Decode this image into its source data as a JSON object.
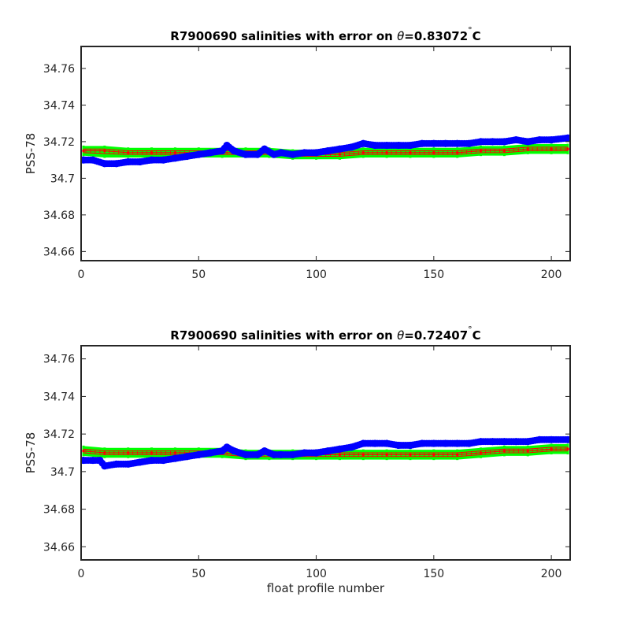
{
  "chart_data": [
    {
      "type": "scatter",
      "title": "R7900690 salinities with error on θ=0.83072°C",
      "title_parts": {
        "prefix": "R7900690 salinities with error on ",
        "symbol": "θ",
        "value": "=0.83072",
        "degree": "°",
        "unit": "C"
      },
      "xlabel": "",
      "ylabel": "PSS-78",
      "xlim": [
        0,
        208
      ],
      "ylim": [
        34.655,
        34.772
      ],
      "xticks": [
        0,
        50,
        100,
        150,
        200
      ],
      "xtick_labels": [
        "0",
        "50",
        "100",
        "150",
        "200"
      ],
      "yticks": [
        34.66,
        34.68,
        34.7,
        34.72,
        34.74,
        34.76
      ],
      "ytick_labels": [
        "34.66",
        "34.68",
        "34.7",
        "34.72",
        "34.74",
        "34.76"
      ],
      "grid": false,
      "colors": {
        "float": "#0000ff",
        "mapped": "#ff0000",
        "error_band": "#00ff00",
        "axes": "#262626"
      },
      "series": [
        {
          "role": "float",
          "points": [
            [
              1,
              34.71
            ],
            [
              5,
              34.71
            ],
            [
              10,
              34.708
            ],
            [
              15,
              34.708
            ],
            [
              20,
              34.709
            ],
            [
              25,
              34.709
            ],
            [
              30,
              34.71
            ],
            [
              35,
              34.71
            ],
            [
              40,
              34.711
            ],
            [
              45,
              34.712
            ],
            [
              50,
              34.713
            ],
            [
              55,
              34.714
            ],
            [
              60,
              34.715
            ],
            [
              62,
              34.718
            ],
            [
              65,
              34.715
            ],
            [
              70,
              34.713
            ],
            [
              75,
              34.713
            ],
            [
              78,
              34.716
            ],
            [
              82,
              34.713
            ],
            [
              85,
              34.714
            ],
            [
              90,
              34.713
            ],
            [
              95,
              34.714
            ],
            [
              100,
              34.714
            ],
            [
              105,
              34.715
            ],
            [
              110,
              34.716
            ],
            [
              115,
              34.717
            ],
            [
              120,
              34.719
            ],
            [
              125,
              34.718
            ],
            [
              130,
              34.718
            ],
            [
              135,
              34.718
            ],
            [
              140,
              34.718
            ],
            [
              145,
              34.719
            ],
            [
              150,
              34.719
            ],
            [
              155,
              34.719
            ],
            [
              160,
              34.719
            ],
            [
              165,
              34.719
            ],
            [
              170,
              34.72
            ],
            [
              175,
              34.72
            ],
            [
              180,
              34.72
            ],
            [
              185,
              34.721
            ],
            [
              190,
              34.72
            ],
            [
              195,
              34.721
            ],
            [
              200,
              34.721
            ],
            [
              207,
              34.722
            ]
          ]
        },
        {
          "role": "mapped",
          "points": [
            [
              1,
              34.715
            ],
            [
              10,
              34.715
            ],
            [
              20,
              34.714
            ],
            [
              30,
              34.714
            ],
            [
              40,
              34.714
            ],
            [
              50,
              34.714
            ],
            [
              60,
              34.714
            ],
            [
              70,
              34.714
            ],
            [
              80,
              34.714
            ],
            [
              90,
              34.713
            ],
            [
              100,
              34.713
            ],
            [
              110,
              34.713
            ],
            [
              120,
              34.714
            ],
            [
              130,
              34.714
            ],
            [
              140,
              34.714
            ],
            [
              150,
              34.714
            ],
            [
              160,
              34.714
            ],
            [
              170,
              34.715
            ],
            [
              180,
              34.715
            ],
            [
              190,
              34.716
            ],
            [
              200,
              34.716
            ],
            [
              207,
              34.716
            ]
          ]
        },
        {
          "role": "error_band",
          "upper": [
            [
              1,
              34.717
            ],
            [
              10,
              34.717
            ],
            [
              20,
              34.716
            ],
            [
              30,
              34.716
            ],
            [
              40,
              34.716
            ],
            [
              50,
              34.716
            ],
            [
              60,
              34.716
            ],
            [
              70,
              34.716
            ],
            [
              80,
              34.716
            ],
            [
              90,
              34.715
            ],
            [
              100,
              34.715
            ],
            [
              110,
              34.715
            ],
            [
              120,
              34.716
            ],
            [
              130,
              34.716
            ],
            [
              140,
              34.716
            ],
            [
              150,
              34.716
            ],
            [
              160,
              34.716
            ],
            [
              170,
              34.717
            ],
            [
              180,
              34.717
            ],
            [
              190,
              34.718
            ],
            [
              200,
              34.718
            ],
            [
              207,
              34.718
            ]
          ],
          "lower": [
            [
              1,
              34.713
            ],
            [
              10,
              34.712
            ],
            [
              20,
              34.712
            ],
            [
              30,
              34.712
            ],
            [
              40,
              34.712
            ],
            [
              50,
              34.712
            ],
            [
              60,
              34.712
            ],
            [
              70,
              34.712
            ],
            [
              80,
              34.712
            ],
            [
              90,
              34.711
            ],
            [
              100,
              34.711
            ],
            [
              110,
              34.711
            ],
            [
              120,
              34.712
            ],
            [
              130,
              34.712
            ],
            [
              140,
              34.712
            ],
            [
              150,
              34.712
            ],
            [
              160,
              34.712
            ],
            [
              170,
              34.713
            ],
            [
              180,
              34.713
            ],
            [
              190,
              34.714
            ],
            [
              200,
              34.714
            ],
            [
              207,
              34.714
            ]
          ]
        }
      ]
    },
    {
      "type": "scatter",
      "title": "R7900690 salinities with error on θ=0.72407°C",
      "title_parts": {
        "prefix": "R7900690 salinities with error on ",
        "symbol": "θ",
        "value": "=0.72407",
        "degree": "°",
        "unit": "C"
      },
      "xlabel": "float profile number",
      "ylabel": "PSS-78",
      "xlim": [
        0,
        208
      ],
      "ylim": [
        34.653,
        34.767
      ],
      "xticks": [
        0,
        50,
        100,
        150,
        200
      ],
      "xtick_labels": [
        "0",
        "50",
        "100",
        "150",
        "200"
      ],
      "yticks": [
        34.66,
        34.68,
        34.7,
        34.72,
        34.74,
        34.76
      ],
      "ytick_labels": [
        "34.66",
        "34.68",
        "34.7",
        "34.72",
        "34.74",
        "34.76"
      ],
      "grid": false,
      "colors": {
        "float": "#0000ff",
        "mapped": "#ff0000",
        "error_band": "#00ff00",
        "axes": "#262626"
      },
      "series": [
        {
          "role": "float",
          "points": [
            [
              1,
              34.706
            ],
            [
              5,
              34.706
            ],
            [
              8,
              34.706
            ],
            [
              10,
              34.703
            ],
            [
              15,
              34.704
            ],
            [
              20,
              34.704
            ],
            [
              25,
              34.705
            ],
            [
              30,
              34.706
            ],
            [
              35,
              34.706
            ],
            [
              40,
              34.707
            ],
            [
              45,
              34.708
            ],
            [
              50,
              34.709
            ],
            [
              55,
              34.71
            ],
            [
              60,
              34.711
            ],
            [
              62,
              34.713
            ],
            [
              65,
              34.711
            ],
            [
              70,
              34.709
            ],
            [
              75,
              34.709
            ],
            [
              78,
              34.711
            ],
            [
              82,
              34.709
            ],
            [
              85,
              34.709
            ],
            [
              90,
              34.709
            ],
            [
              95,
              34.71
            ],
            [
              100,
              34.71
            ],
            [
              105,
              34.711
            ],
            [
              110,
              34.712
            ],
            [
              115,
              34.713
            ],
            [
              120,
              34.715
            ],
            [
              125,
              34.715
            ],
            [
              130,
              34.715
            ],
            [
              135,
              34.714
            ],
            [
              140,
              34.714
            ],
            [
              145,
              34.715
            ],
            [
              150,
              34.715
            ],
            [
              155,
              34.715
            ],
            [
              160,
              34.715
            ],
            [
              165,
              34.715
            ],
            [
              170,
              34.716
            ],
            [
              175,
              34.716
            ],
            [
              180,
              34.716
            ],
            [
              185,
              34.716
            ],
            [
              190,
              34.716
            ],
            [
              195,
              34.717
            ],
            [
              200,
              34.717
            ],
            [
              207,
              34.717
            ]
          ]
        },
        {
          "role": "mapped",
          "points": [
            [
              1,
              34.711
            ],
            [
              10,
              34.71
            ],
            [
              20,
              34.71
            ],
            [
              30,
              34.71
            ],
            [
              40,
              34.71
            ],
            [
              50,
              34.71
            ],
            [
              60,
              34.71
            ],
            [
              70,
              34.709
            ],
            [
              80,
              34.709
            ],
            [
              90,
              34.709
            ],
            [
              100,
              34.709
            ],
            [
              110,
              34.709
            ],
            [
              120,
              34.709
            ],
            [
              130,
              34.709
            ],
            [
              140,
              34.709
            ],
            [
              150,
              34.709
            ],
            [
              160,
              34.709
            ],
            [
              170,
              34.71
            ],
            [
              180,
              34.711
            ],
            [
              190,
              34.711
            ],
            [
              200,
              34.712
            ],
            [
              207,
              34.712
            ]
          ]
        },
        {
          "role": "error_band",
          "upper": [
            [
              1,
              34.713
            ],
            [
              10,
              34.712
            ],
            [
              20,
              34.712
            ],
            [
              30,
              34.712
            ],
            [
              40,
              34.712
            ],
            [
              50,
              34.712
            ],
            [
              60,
              34.712
            ],
            [
              70,
              34.711
            ],
            [
              80,
              34.711
            ],
            [
              90,
              34.711
            ],
            [
              100,
              34.711
            ],
            [
              110,
              34.711
            ],
            [
              120,
              34.711
            ],
            [
              130,
              34.711
            ],
            [
              140,
              34.711
            ],
            [
              150,
              34.711
            ],
            [
              160,
              34.711
            ],
            [
              170,
              34.712
            ],
            [
              180,
              34.713
            ],
            [
              190,
              34.713
            ],
            [
              200,
              34.714
            ],
            [
              207,
              34.714
            ]
          ],
          "lower": [
            [
              1,
              34.709
            ],
            [
              10,
              34.708
            ],
            [
              20,
              34.708
            ],
            [
              30,
              34.708
            ],
            [
              40,
              34.708
            ],
            [
              50,
              34.708
            ],
            [
              60,
              34.708
            ],
            [
              70,
              34.707
            ],
            [
              80,
              34.707
            ],
            [
              90,
              34.707
            ],
            [
              100,
              34.707
            ],
            [
              110,
              34.707
            ],
            [
              120,
              34.707
            ],
            [
              130,
              34.707
            ],
            [
              140,
              34.707
            ],
            [
              150,
              34.707
            ],
            [
              160,
              34.707
            ],
            [
              170,
              34.708
            ],
            [
              180,
              34.709
            ],
            [
              190,
              34.709
            ],
            [
              200,
              34.71
            ],
            [
              207,
              34.71
            ]
          ]
        }
      ]
    }
  ]
}
